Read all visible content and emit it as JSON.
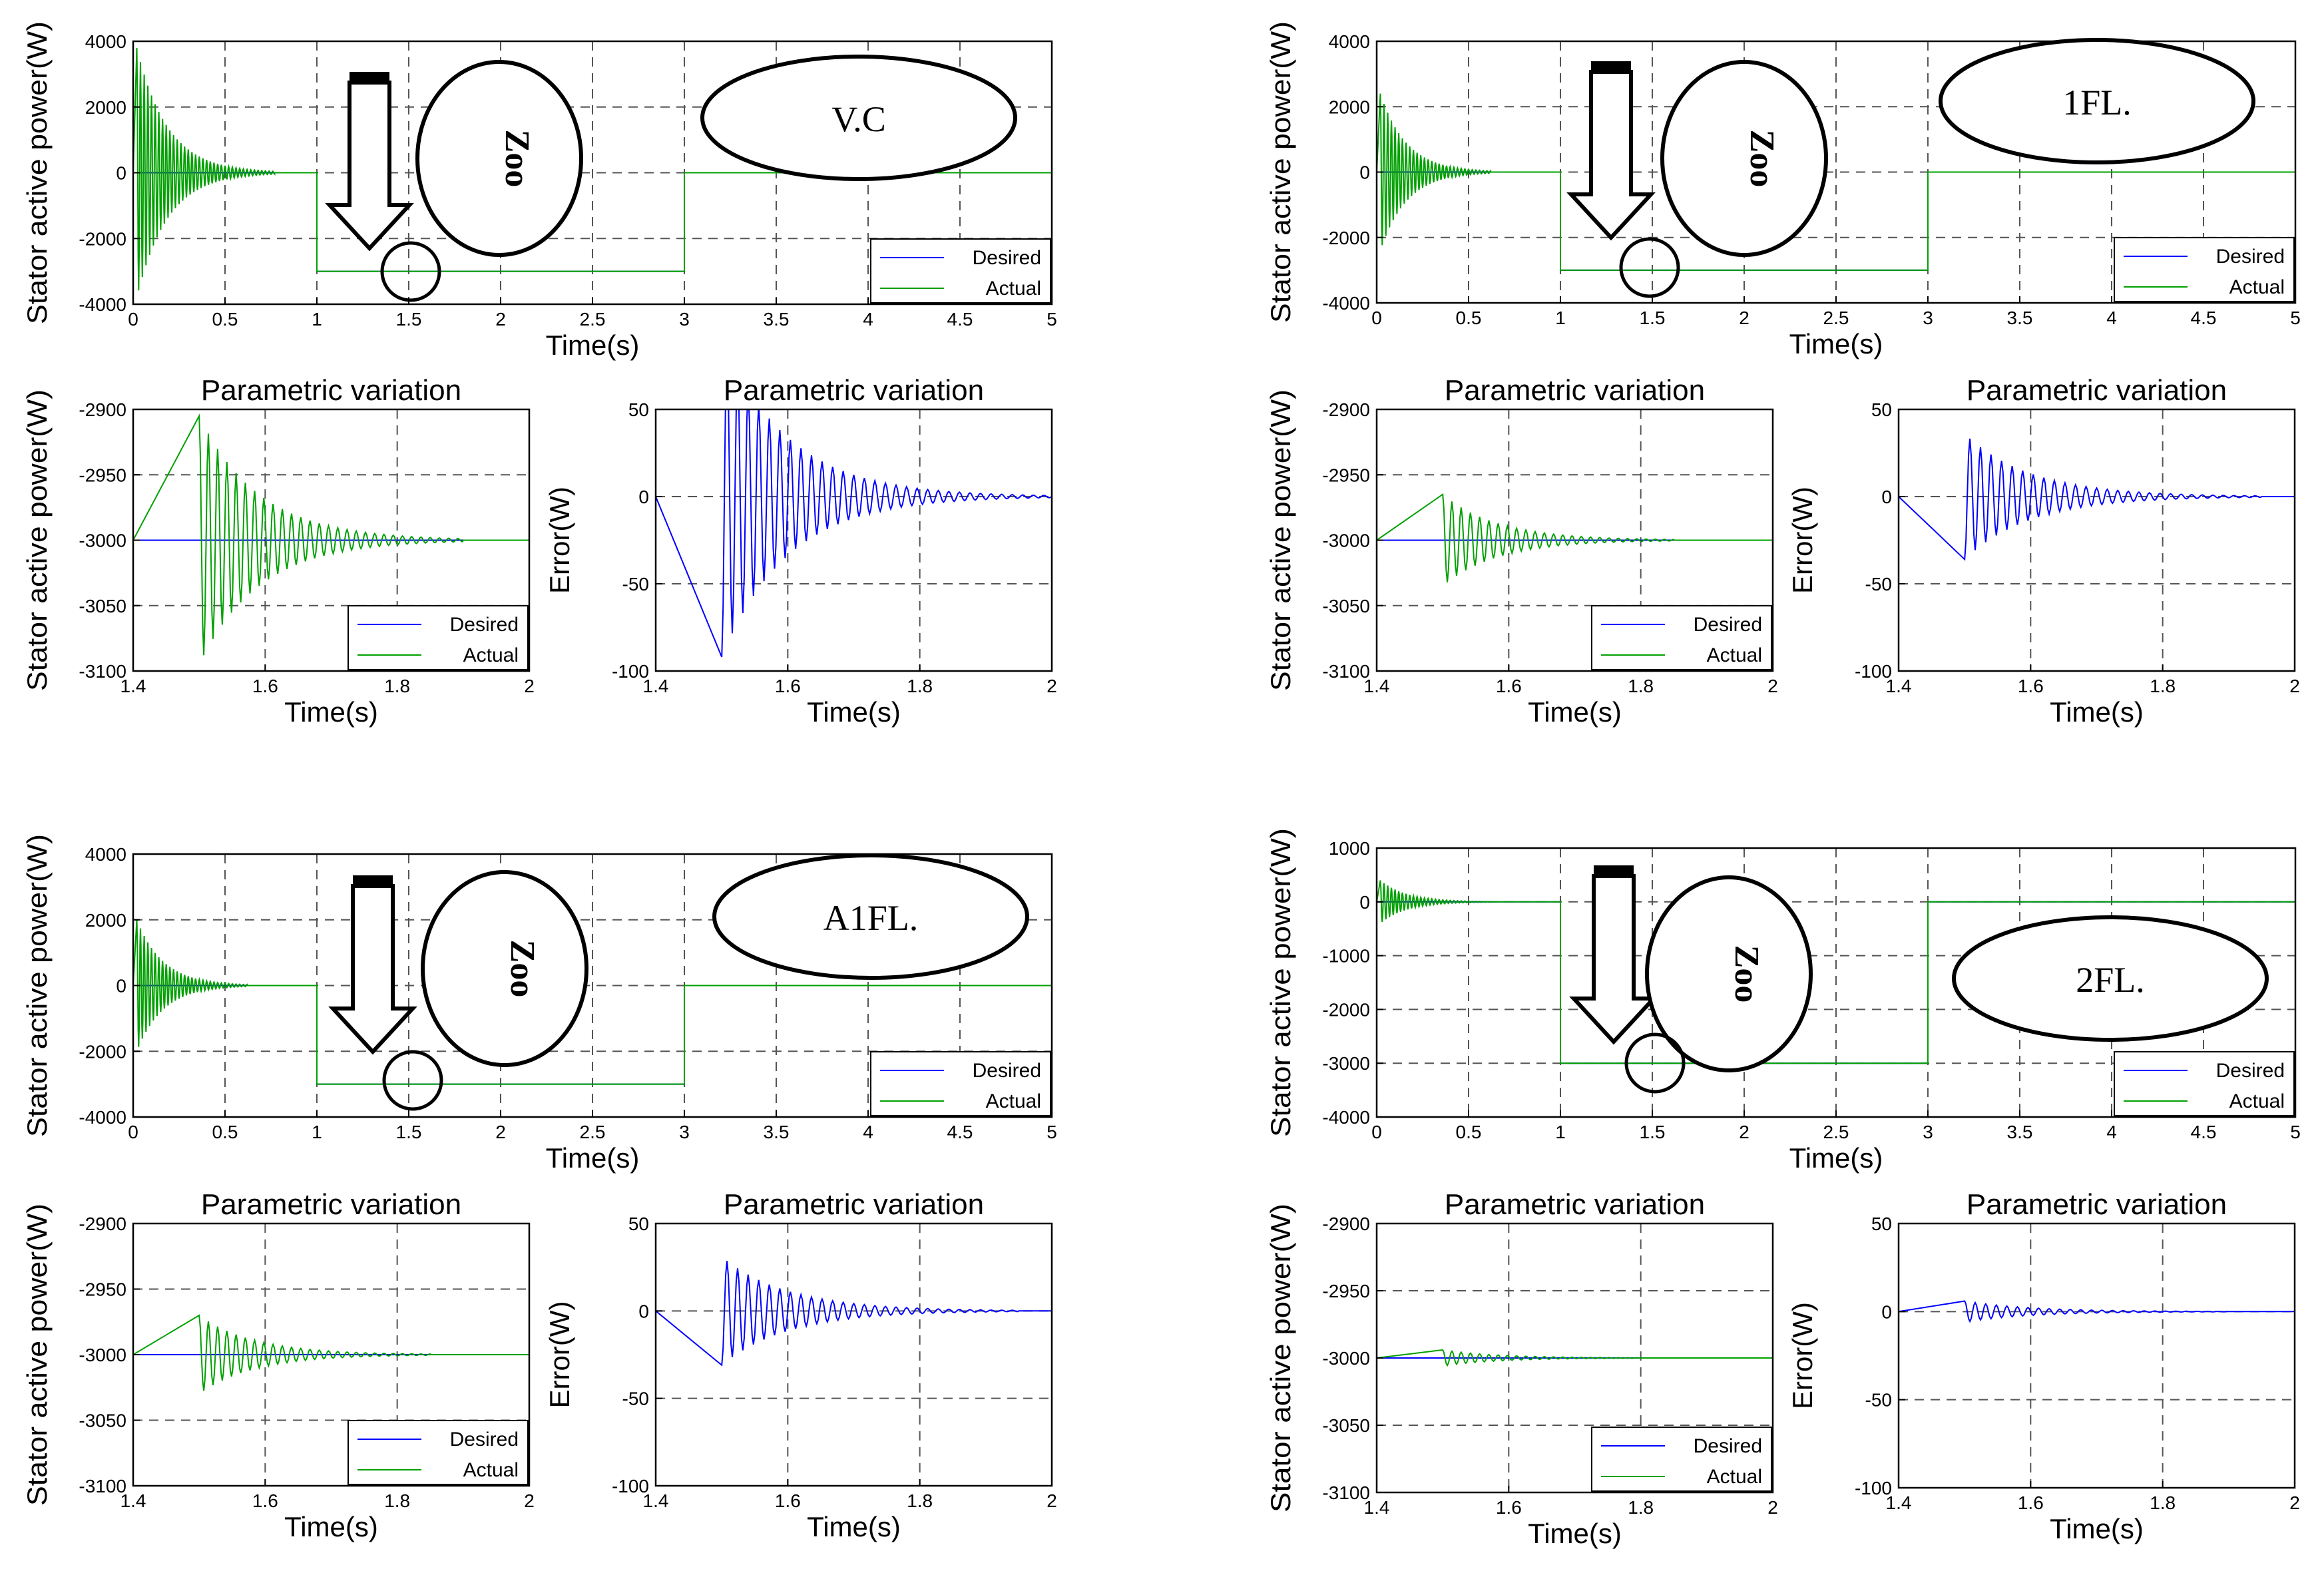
{
  "colors": {
    "desired": "#0000ff",
    "actual": "#00a000",
    "axis": "#000000",
    "grid": "#555555",
    "background": "#ffffff"
  },
  "chart_data": [
    {
      "id": "vc-main",
      "group": "V.C",
      "type": "line",
      "title": "",
      "xlabel": "Time(s)",
      "ylabel": "Stator active power(W)",
      "xlim": [
        0,
        5
      ],
      "ylim": [
        -4000,
        4000
      ],
      "xticks": [
        "0",
        "0.5",
        "1",
        "1.5",
        "2",
        "2.5",
        "3",
        "3.5",
        "4",
        "4.5",
        "5"
      ],
      "yticks": [
        "-4000",
        "-2000",
        "0",
        "2000",
        "4000"
      ],
      "legend": [
        "Desired",
        "Actual"
      ],
      "legend_position": "bottom-right",
      "annotations": {
        "method_label": "V.C",
        "zoom_label": "Zoo"
      },
      "series": [
        {
          "name": "Desired",
          "segments": [
            {
              "x": [
                0,
                1,
                1,
                3,
                3,
                5
              ],
              "y": [
                0,
                0,
                -3000,
                -3000,
                0,
                0
              ]
            }
          ]
        },
        {
          "name": "Actual",
          "segments": [
            {
              "x": [
                0,
                1,
                1,
                3,
                3,
                5
              ],
              "y": [
                0,
                0,
                -3000,
                -3000,
                0,
                0
              ]
            }
          ],
          "oscillation": {
            "t0": 0.02,
            "amplitude": 3800,
            "decay": 6,
            "period": 0.02,
            "duration": 0.75,
            "base": 0
          }
        }
      ]
    },
    {
      "id": "vc-zoom",
      "group": "V.C",
      "type": "line",
      "title": "Parametric variation",
      "xlabel": "Time(s)",
      "ylabel": "Stator active power(W)",
      "xlim": [
        1.4,
        2
      ],
      "ylim": [
        -3100,
        -2900
      ],
      "xticks": [
        "1.4",
        "1.6",
        "1.8",
        "2"
      ],
      "yticks": [
        "-3100",
        "-3050",
        "-3000",
        "-2950",
        "-2900"
      ],
      "legend": [
        "Desired",
        "Actual"
      ],
      "legend_position": "bottom-right",
      "series": [
        {
          "name": "Desired",
          "segments": [
            {
              "x": [
                1.4,
                2
              ],
              "y": [
                -3000,
                -3000
              ]
            }
          ]
        },
        {
          "name": "Actual",
          "segments": [
            {
              "x": [
                1.4,
                1.5,
                2
              ],
              "y": [
                -3000,
                -3000,
                -3000
              ]
            }
          ],
          "oscillation": {
            "t0": 1.5,
            "amplitude": 95,
            "decay": 11,
            "period": 0.014,
            "duration": 0.4,
            "base": -3000
          }
        }
      ]
    },
    {
      "id": "vc-error",
      "group": "V.C",
      "type": "line",
      "title": "Parametric variation",
      "xlabel": "Time(s)",
      "ylabel": "Error(W)",
      "xlim": [
        1.4,
        2
      ],
      "ylim": [
        -100,
        50
      ],
      "xticks": [
        "1.4",
        "1.6",
        "1.8",
        "2"
      ],
      "yticks": [
        "-100",
        "-50",
        "0",
        "50"
      ],
      "legend": [],
      "legend_position": "none",
      "series": [
        {
          "name": "Error",
          "segments": [
            {
              "x": [
                1.4,
                1.5,
                2
              ],
              "y": [
                0,
                0,
                0
              ]
            }
          ],
          "oscillation": {
            "t0": 1.5,
            "amplitude": -92,
            "decay": 10,
            "period": 0.016,
            "duration": 0.5,
            "base": 0
          }
        }
      ]
    },
    {
      "id": "fl1-main",
      "group": "1FL.",
      "type": "line",
      "title": "",
      "xlabel": "Time(s)",
      "ylabel": "Stator active power(W)",
      "xlim": [
        0,
        5
      ],
      "ylim": [
        -4000,
        4000
      ],
      "xticks": [
        "0",
        "0.5",
        "1",
        "1.5",
        "2",
        "2.5",
        "3",
        "3.5",
        "4",
        "4.5",
        "5"
      ],
      "yticks": [
        "-4000",
        "-2000",
        "0",
        "2000",
        "4000"
      ],
      "legend": [
        "Desired",
        "Actual"
      ],
      "legend_position": "bottom-right",
      "annotations": {
        "method_label": "1FL.",
        "zoom_label": "Zoo"
      },
      "series": [
        {
          "name": "Desired",
          "segments": [
            {
              "x": [
                0,
                1,
                1,
                3,
                3,
                5
              ],
              "y": [
                0,
                0,
                -3000,
                -3000,
                0,
                0
              ]
            }
          ]
        },
        {
          "name": "Actual",
          "segments": [
            {
              "x": [
                0,
                1,
                1,
                3,
                3,
                5
              ],
              "y": [
                0,
                0,
                -3000,
                -3000,
                0,
                0
              ]
            }
          ],
          "oscillation": {
            "t0": 0.02,
            "amplitude": 2400,
            "decay": 7,
            "period": 0.02,
            "duration": 0.6,
            "base": 0
          }
        }
      ]
    },
    {
      "id": "fl1-zoom",
      "group": "1FL.",
      "type": "line",
      "title": "Parametric variation",
      "xlabel": "Time(s)",
      "ylabel": "Stator active power(W)",
      "xlim": [
        1.4,
        2
      ],
      "ylim": [
        -3100,
        -2900
      ],
      "xticks": [
        "1.4",
        "1.6",
        "1.8",
        "2"
      ],
      "yticks": [
        "-3100",
        "-3050",
        "-3000",
        "-2950",
        "-2900"
      ],
      "legend": [
        "Desired",
        "Actual"
      ],
      "legend_position": "bottom-right",
      "series": [
        {
          "name": "Desired",
          "segments": [
            {
              "x": [
                1.4,
                2
              ],
              "y": [
                -3000,
                -3000
              ]
            }
          ]
        },
        {
          "name": "Actual",
          "segments": [
            {
              "x": [
                1.4,
                1.5,
                2
              ],
              "y": [
                -3000,
                -3000,
                -3000
              ]
            }
          ],
          "oscillation": {
            "t0": 1.5,
            "amplitude": 35,
            "decay": 12,
            "period": 0.014,
            "duration": 0.35,
            "base": -3000
          }
        }
      ]
    },
    {
      "id": "fl1-error",
      "group": "1FL.",
      "type": "line",
      "title": "Parametric variation",
      "xlabel": "Time(s)",
      "ylabel": "Error(W)",
      "xlim": [
        1.4,
        2
      ],
      "ylim": [
        -100,
        50
      ],
      "xticks": [
        "1.4",
        "1.6",
        "1.8",
        "2"
      ],
      "yticks": [
        "-100",
        "-50",
        "0",
        "50"
      ],
      "legend": [],
      "legend_position": "none",
      "series": [
        {
          "name": "Error",
          "segments": [
            {
              "x": [
                1.4,
                1.5,
                2
              ],
              "y": [
                0,
                0,
                0
              ]
            }
          ],
          "oscillation": {
            "t0": 1.5,
            "amplitude": -36,
            "decay": 10,
            "period": 0.016,
            "duration": 0.45,
            "base": 0
          }
        }
      ]
    },
    {
      "id": "afl-main",
      "group": "A1FL.",
      "type": "line",
      "title": "",
      "xlabel": "Time(s)",
      "ylabel": "Stator active power(W)",
      "xlim": [
        0,
        5
      ],
      "ylim": [
        -4000,
        4000
      ],
      "xticks": [
        "0",
        "0.5",
        "1",
        "1.5",
        "2",
        "2.5",
        "3",
        "3.5",
        "4",
        "4.5",
        "5"
      ],
      "yticks": [
        "-4000",
        "-2000",
        "0",
        "2000",
        "4000"
      ],
      "legend": [
        "Desired",
        "Actual"
      ],
      "legend_position": "bottom-right",
      "annotations": {
        "method_label": "A1FL.",
        "zoom_label": "Zoo"
      },
      "series": [
        {
          "name": "Desired",
          "segments": [
            {
              "x": [
                0,
                1,
                1,
                3,
                3,
                5
              ],
              "y": [
                0,
                0,
                -3000,
                -3000,
                0,
                0
              ]
            }
          ]
        },
        {
          "name": "Actual",
          "segments": [
            {
              "x": [
                0,
                1,
                1,
                3,
                3,
                5
              ],
              "y": [
                0,
                0,
                -3000,
                -3000,
                0,
                0
              ]
            }
          ],
          "oscillation": {
            "t0": 0.02,
            "amplitude": 2000,
            "decay": 7,
            "period": 0.02,
            "duration": 0.6,
            "base": 0
          }
        }
      ]
    },
    {
      "id": "afl-zoom",
      "group": "A1FL.",
      "type": "line",
      "title": "Parametric variation",
      "xlabel": "Time(s)",
      "ylabel": "Stator active power(W)",
      "xlim": [
        1.4,
        2
      ],
      "ylim": [
        -3100,
        -2900
      ],
      "xticks": [
        "1.4",
        "1.6",
        "1.8",
        "2"
      ],
      "yticks": [
        "-3100",
        "-3050",
        "-3000",
        "-2950",
        "-2900"
      ],
      "legend": [
        "Desired",
        "Actual"
      ],
      "legend_position": "bottom-right",
      "series": [
        {
          "name": "Desired",
          "segments": [
            {
              "x": [
                1.4,
                2
              ],
              "y": [
                -3000,
                -3000
              ]
            }
          ]
        },
        {
          "name": "Actual",
          "segments": [
            {
              "x": [
                1.4,
                1.5,
                2
              ],
              "y": [
                -3000,
                -3000,
                -3000
              ]
            }
          ],
          "oscillation": {
            "t0": 1.5,
            "amplitude": 30,
            "decay": 12,
            "period": 0.014,
            "duration": 0.35,
            "base": -3000
          }
        }
      ]
    },
    {
      "id": "afl-error",
      "group": "A1FL.",
      "type": "line",
      "title": "Parametric variation",
      "xlabel": "Time(s)",
      "ylabel": "Error(W)",
      "xlim": [
        1.4,
        2
      ],
      "ylim": [
        -100,
        50
      ],
      "xticks": [
        "1.4",
        "1.6",
        "1.8",
        "2"
      ],
      "yticks": [
        "-100",
        "-50",
        "0",
        "50"
      ],
      "legend": [],
      "legend_position": "none",
      "series": [
        {
          "name": "Error",
          "segments": [
            {
              "x": [
                1.4,
                1.5,
                2
              ],
              "y": [
                0,
                0,
                0
              ]
            }
          ],
          "oscillation": {
            "t0": 1.5,
            "amplitude": -31,
            "decay": 10,
            "period": 0.016,
            "duration": 0.45,
            "base": 0
          }
        }
      ]
    },
    {
      "id": "fl2-main",
      "group": "2FL.",
      "type": "line",
      "title": "",
      "xlabel": "Time(s)",
      "ylabel": "Stator active power(W)",
      "xlim": [
        0,
        5
      ],
      "ylim": [
        -4000,
        1000
      ],
      "xticks": [
        "0",
        "0.5",
        "1",
        "1.5",
        "2",
        "2.5",
        "3",
        "3.5",
        "4",
        "4.5",
        "5"
      ],
      "yticks": [
        "-4000",
        "-3000",
        "-2000",
        "-1000",
        "0",
        "1000"
      ],
      "legend": [
        "Desired",
        "Actual"
      ],
      "legend_position": "bottom-right",
      "annotations": {
        "method_label": "2FL.",
        "zoom_label": "Zoo"
      },
      "series": [
        {
          "name": "Desired",
          "segments": [
            {
              "x": [
                0,
                1,
                1,
                3,
                3,
                5
              ],
              "y": [
                0,
                0,
                -3000,
                -3000,
                0,
                0
              ]
            }
          ]
        },
        {
          "name": "Actual",
          "segments": [
            {
              "x": [
                0,
                1,
                1,
                3,
                3,
                5
              ],
              "y": [
                0,
                0,
                -3000,
                -3000,
                0,
                0
              ]
            }
          ],
          "oscillation": {
            "t0": 0.02,
            "amplitude": 400,
            "decay": 7,
            "period": 0.02,
            "duration": 0.6,
            "base": 0
          }
        }
      ]
    },
    {
      "id": "fl2-zoom",
      "group": "2FL.",
      "type": "line",
      "title": "Parametric variation",
      "xlabel": "Time(s)",
      "ylabel": "Stator active power(W)",
      "xlim": [
        1.4,
        2
      ],
      "ylim": [
        -3100,
        -2900
      ],
      "xticks": [
        "1.4",
        "1.6",
        "1.8",
        "2"
      ],
      "yticks": [
        "-3100",
        "-3050",
        "-3000",
        "-2950",
        "-2900"
      ],
      "legend": [
        "Desired",
        "Actual"
      ],
      "legend_position": "bottom-right",
      "series": [
        {
          "name": "Desired",
          "segments": [
            {
              "x": [
                1.4,
                2
              ],
              "y": [
                -3000,
                -3000
              ]
            }
          ]
        },
        {
          "name": "Actual",
          "segments": [
            {
              "x": [
                1.4,
                1.5,
                2
              ],
              "y": [
                -3000,
                -3000,
                -3000
              ]
            }
          ],
          "oscillation": {
            "t0": 1.5,
            "amplitude": 6,
            "decay": 12,
            "period": 0.014,
            "duration": 0.3,
            "base": -3000
          }
        }
      ]
    },
    {
      "id": "fl2-error",
      "group": "2FL.",
      "type": "line",
      "title": "Parametric variation",
      "xlabel": "Time(s)",
      "ylabel": "Error(W)",
      "xlim": [
        1.4,
        2
      ],
      "ylim": [
        -100,
        50
      ],
      "xticks": [
        "1.4",
        "1.6",
        "1.8",
        "2"
      ],
      "yticks": [
        "-100",
        "-50",
        "0",
        "50"
      ],
      "legend": [],
      "legend_position": "none",
      "series": [
        {
          "name": "Error",
          "segments": [
            {
              "x": [
                1.4,
                1.5,
                2
              ],
              "y": [
                0,
                0,
                0
              ]
            }
          ],
          "oscillation": {
            "t0": 1.5,
            "amplitude": 6,
            "decay": 10,
            "period": 0.016,
            "duration": 0.4,
            "base": 0
          }
        }
      ]
    }
  ]
}
